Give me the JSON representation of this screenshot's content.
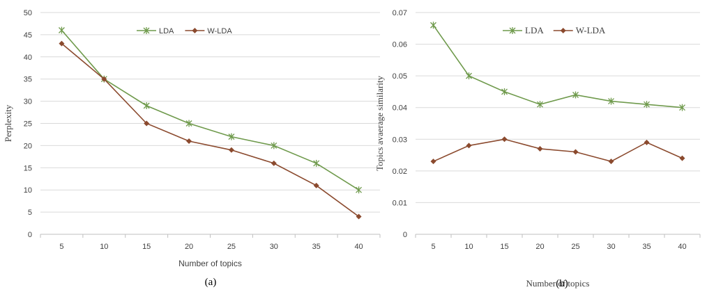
{
  "colors": {
    "lda": "#6f9a4c",
    "wlda": "#8b4a2e",
    "grid": "#d9d9d9",
    "axis": "#bfbfbf"
  },
  "chart_data": [
    {
      "type": "line",
      "panel_label": "(a)",
      "categories": [
        "5",
        "10",
        "15",
        "20",
        "25",
        "30",
        "35",
        "40"
      ],
      "series": [
        {
          "name": "LDA",
          "marker": "asterisk",
          "values": [
            46,
            35,
            29,
            25,
            22,
            20,
            16,
            10
          ]
        },
        {
          "name": "W-LDA",
          "marker": "diamond",
          "values": [
            43,
            35,
            25,
            21,
            19,
            16,
            11,
            4
          ]
        }
      ],
      "xlabel": "Number of topics",
      "ylabel": "Perplexity",
      "ylim": [
        0,
        50
      ],
      "yticks": [
        "0",
        "5",
        "10",
        "15",
        "20",
        "25",
        "30",
        "35",
        "40",
        "45",
        "50"
      ],
      "grid": true,
      "legend": "top-center"
    },
    {
      "type": "line",
      "panel_label": "(b)",
      "categories": [
        "5",
        "10",
        "15",
        "20",
        "25",
        "30",
        "35",
        "40"
      ],
      "series": [
        {
          "name": "LDA",
          "marker": "asterisk",
          "values": [
            0.066,
            0.05,
            0.045,
            0.041,
            0.044,
            0.042,
            0.041,
            0.04
          ]
        },
        {
          "name": "W-LDA",
          "marker": "diamond",
          "values": [
            0.023,
            0.028,
            0.03,
            0.027,
            0.026,
            0.023,
            0.029,
            0.024
          ]
        }
      ],
      "xlabel": "Number of topics",
      "ylabel": "Topics avaerage similarity",
      "ylim": [
        0,
        0.07
      ],
      "yticks": [
        "0",
        "0.01",
        "0.02",
        "0.03",
        "0.04",
        "0.05",
        "0.06",
        "0.07"
      ],
      "grid": true,
      "legend": "top-center"
    }
  ]
}
